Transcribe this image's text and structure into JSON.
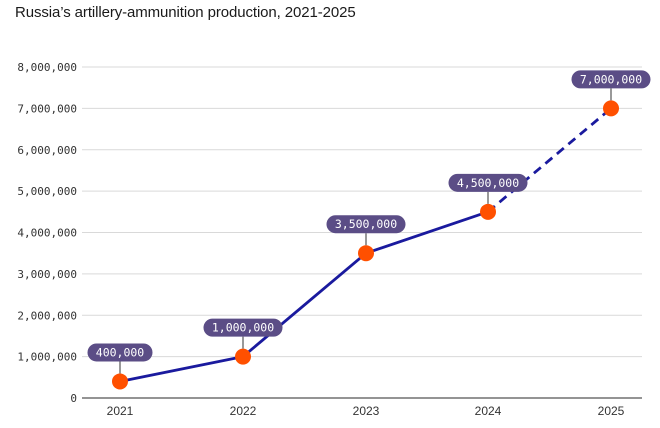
{
  "chart_data": {
    "type": "line",
    "title": "Russia’s artillery-ammunition production, 2021-2025",
    "xlabel": "",
    "ylabel": "",
    "categories": [
      "2021",
      "2022",
      "2023",
      "2024",
      "2025"
    ],
    "values": [
      400000,
      1000000,
      3500000,
      4500000,
      7000000
    ],
    "data_labels": [
      "400,000",
      "1,000,000",
      "3,500,000",
      "4,500,000",
      "7,000,000"
    ],
    "projected_from_index": 3,
    "ylim": [
      0,
      8000000
    ],
    "y_ticks": [
      0,
      1000000,
      2000000,
      3000000,
      4000000,
      5000000,
      6000000,
      7000000,
      8000000
    ],
    "y_tick_labels": [
      "0",
      "1,000,000",
      "2,000,000",
      "3,000,000",
      "4,000,000",
      "5,000,000",
      "6,000,000",
      "7,000,000",
      "8,000,000"
    ],
    "grid": true,
    "colors": {
      "line": "#1a1a9e",
      "point": "#ff5000",
      "label_bg": "#5b4d86",
      "grid": "#d9d9d9",
      "axis": "#555555"
    }
  }
}
